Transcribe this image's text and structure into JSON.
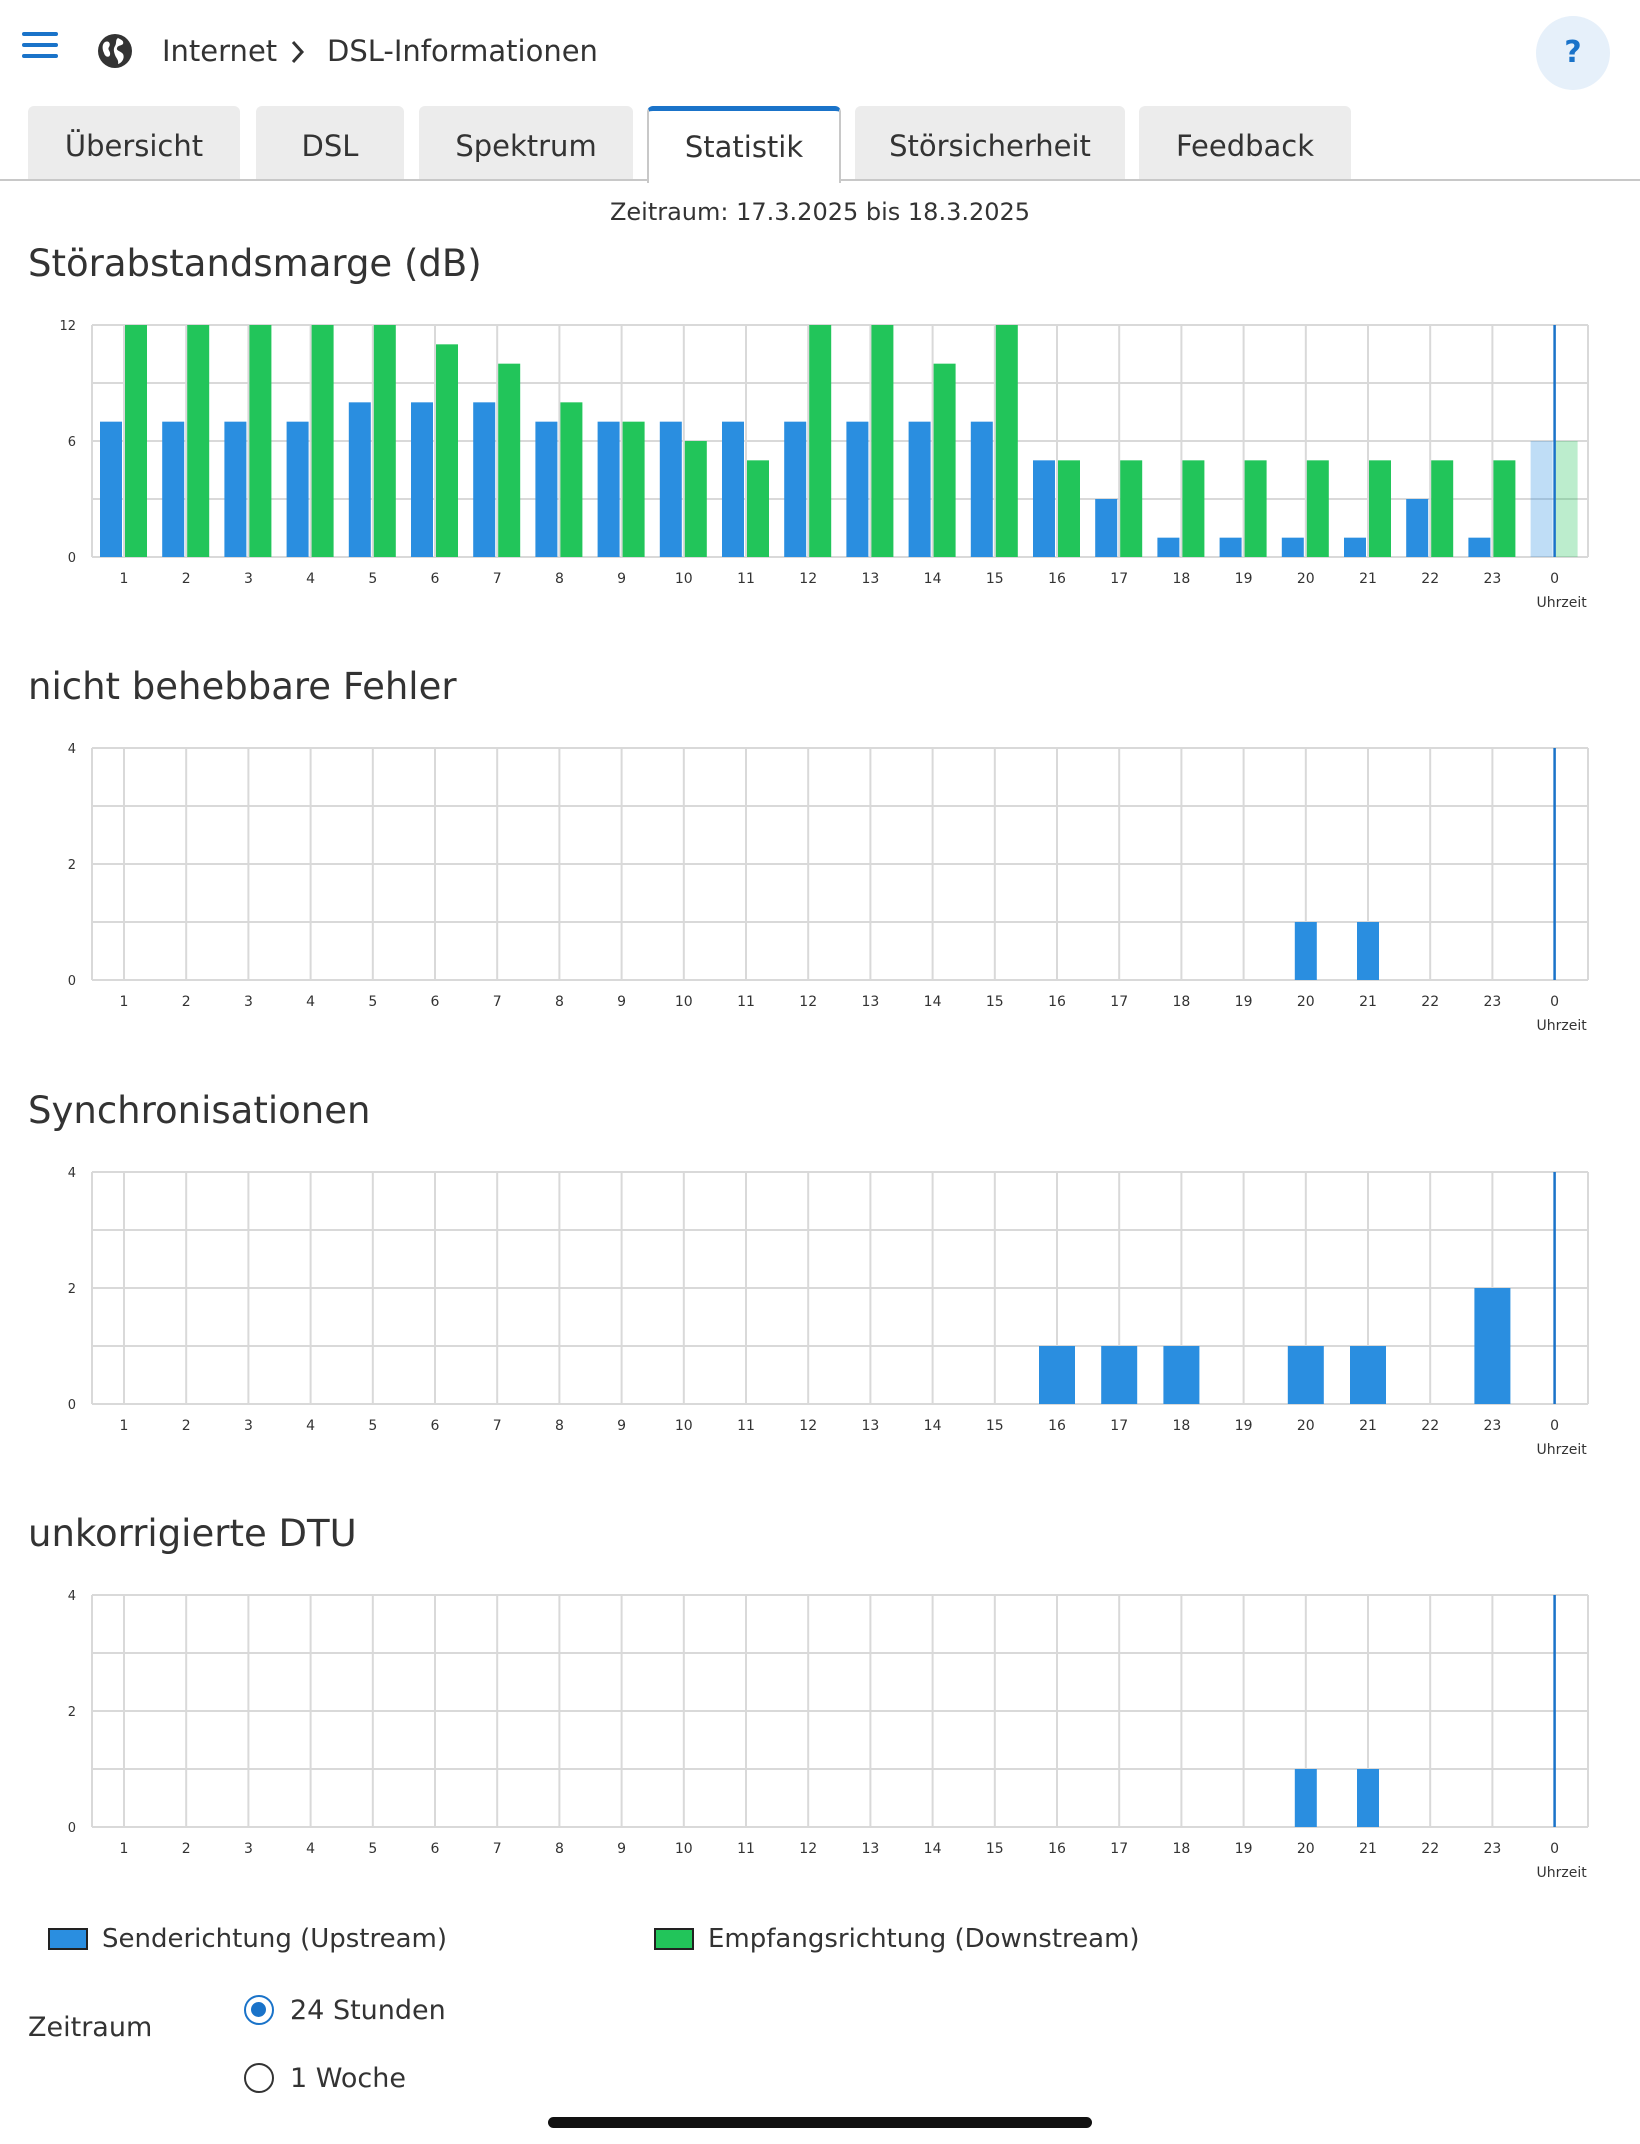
{
  "header": {
    "menu_icon": "hamburger-menu-icon",
    "globe_icon": "globe-icon",
    "breadcrumb": [
      "Internet",
      "DSL-Informationen"
    ],
    "help_label": "?"
  },
  "tabs": [
    {
      "label": "Übersicht",
      "active": false
    },
    {
      "label": "DSL",
      "active": false
    },
    {
      "label": "Spektrum",
      "active": false
    },
    {
      "label": "Statistik",
      "active": true
    },
    {
      "label": "Störsicherheit",
      "active": false
    },
    {
      "label": "Feedback",
      "active": false
    }
  ],
  "period_text": "Zeitraum: 17.3.2025 bis 18.3.2025",
  "colors": {
    "upstream": "#2a8ee0",
    "downstream": "#22c55a",
    "accent": "#1a73c9",
    "grid": "#d9d9d9"
  },
  "chart_data": [
    {
      "type": "bar",
      "title": "Störabstandsmarge (dB)",
      "xlabel": "Uhrzeit",
      "categories": [
        "1",
        "2",
        "3",
        "4",
        "5",
        "6",
        "7",
        "8",
        "9",
        "10",
        "11",
        "12",
        "13",
        "14",
        "15",
        "16",
        "17",
        "18",
        "19",
        "20",
        "21",
        "22",
        "23",
        "0"
      ],
      "yticks": [
        0,
        6,
        12
      ],
      "ylim": [
        0,
        12
      ],
      "series": [
        {
          "key": "upstream",
          "values": [
            7,
            7,
            7,
            7,
            8,
            8,
            8,
            7,
            7,
            7,
            7,
            7,
            7,
            7,
            7,
            5,
            3,
            1,
            1,
            1,
            1,
            3,
            1,
            6
          ]
        },
        {
          "key": "downstream",
          "values": [
            12,
            12,
            12,
            12,
            12,
            11,
            10,
            8,
            7,
            6,
            5,
            12,
            12,
            10,
            12,
            5,
            5,
            5,
            5,
            5,
            5,
            5,
            5,
            6
          ]
        }
      ],
      "current_category": "0"
    },
    {
      "type": "bar",
      "title": "nicht behebbare Fehler",
      "xlabel": "Uhrzeit",
      "categories": [
        "1",
        "2",
        "3",
        "4",
        "5",
        "6",
        "7",
        "8",
        "9",
        "10",
        "11",
        "12",
        "13",
        "14",
        "15",
        "16",
        "17",
        "18",
        "19",
        "20",
        "21",
        "22",
        "23",
        "0"
      ],
      "yticks": [
        0,
        2,
        4
      ],
      "ylim": [
        0,
        4
      ],
      "series": [
        {
          "key": "upstream",
          "values": [
            0,
            0,
            0,
            0,
            0,
            0,
            0,
            0,
            0,
            0,
            0,
            0,
            0,
            0,
            0,
            0,
            0,
            0,
            0,
            1,
            1,
            0,
            0,
            0
          ]
        }
      ],
      "current_category": "0"
    },
    {
      "type": "bar",
      "title": "Synchronisationen",
      "xlabel": "Uhrzeit",
      "categories": [
        "1",
        "2",
        "3",
        "4",
        "5",
        "6",
        "7",
        "8",
        "9",
        "10",
        "11",
        "12",
        "13",
        "14",
        "15",
        "16",
        "17",
        "18",
        "19",
        "20",
        "21",
        "22",
        "23",
        "0"
      ],
      "yticks": [
        0,
        2,
        4
      ],
      "ylim": [
        0,
        4
      ],
      "series": [
        {
          "key": "upstream",
          "values": [
            0,
            0,
            0,
            0,
            0,
            0,
            0,
            0,
            0,
            0,
            0,
            0,
            0,
            0,
            0,
            1,
            1,
            1,
            0,
            1,
            1,
            0,
            2,
            0
          ]
        }
      ],
      "current_category": "0"
    },
    {
      "type": "bar",
      "title": "unkorrigierte DTU",
      "xlabel": "Uhrzeit",
      "categories": [
        "1",
        "2",
        "3",
        "4",
        "5",
        "6",
        "7",
        "8",
        "9",
        "10",
        "11",
        "12",
        "13",
        "14",
        "15",
        "16",
        "17",
        "18",
        "19",
        "20",
        "21",
        "22",
        "23",
        "0"
      ],
      "yticks": [
        0,
        2,
        4
      ],
      "ylim": [
        0,
        4
      ],
      "series": [
        {
          "key": "upstream",
          "values": [
            0,
            0,
            0,
            0,
            0,
            0,
            0,
            0,
            0,
            0,
            0,
            0,
            0,
            0,
            0,
            0,
            0,
            0,
            0,
            1,
            1,
            0,
            0,
            0
          ]
        }
      ],
      "current_category": "0"
    }
  ],
  "legend": {
    "upstream": "Senderichtung (Upstream)",
    "downstream": "Empfangsrichtung (Downstream)"
  },
  "zeitraum": {
    "label": "Zeitraum",
    "options": [
      {
        "label": "24 Stunden",
        "checked": true
      },
      {
        "label": "1 Woche",
        "checked": false
      }
    ]
  }
}
